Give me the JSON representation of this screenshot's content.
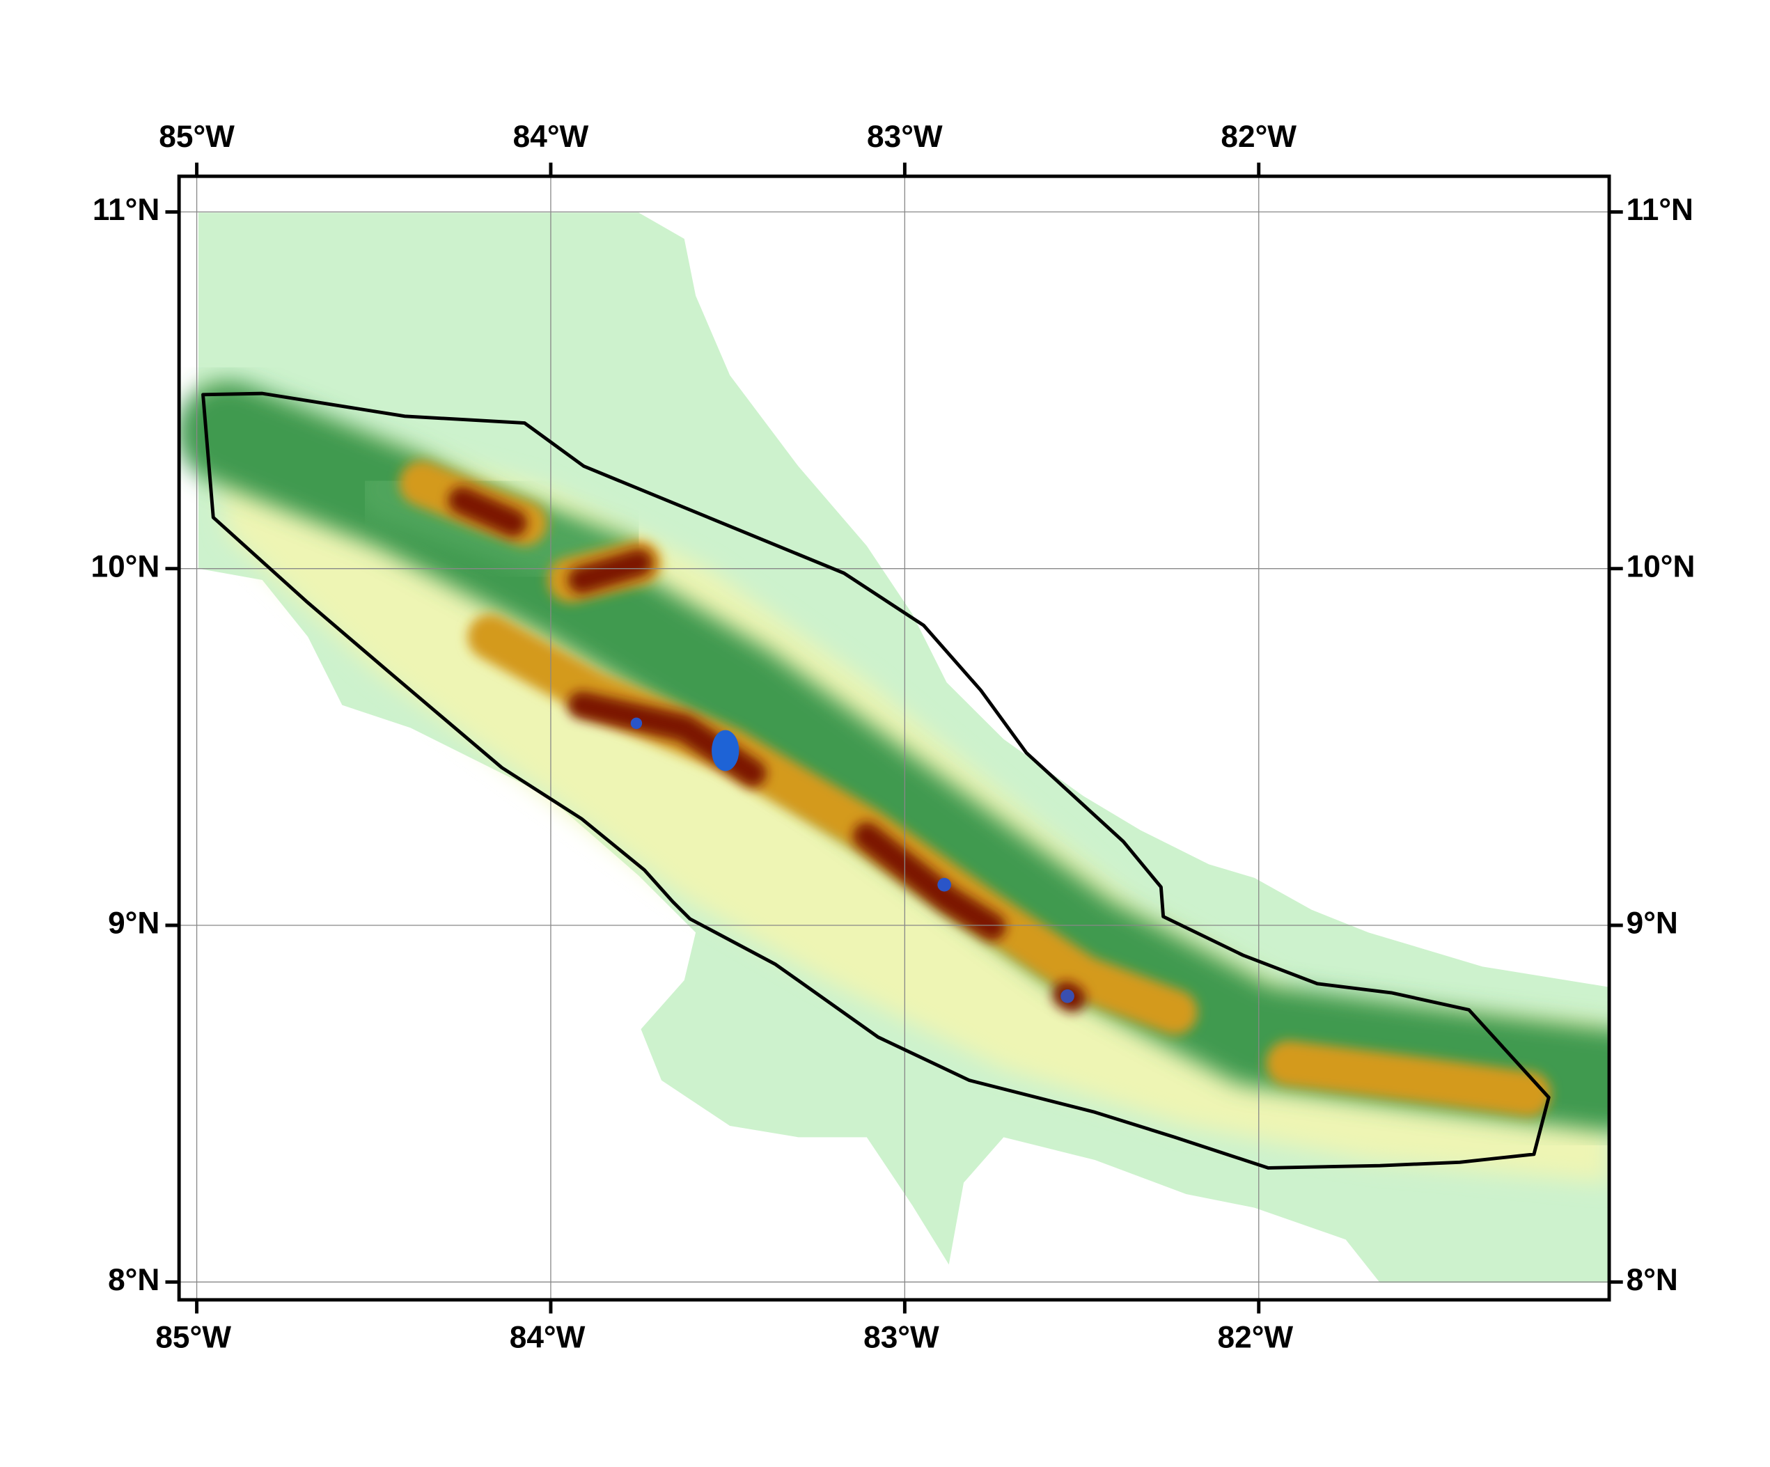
{
  "map": {
    "type": "map",
    "xlim": [
      -85.05,
      -81.01
    ],
    "ylim": [
      7.95,
      11.1
    ],
    "xticks": [
      {
        "value": -85,
        "label": "85°W"
      },
      {
        "value": -84,
        "label": "84°W"
      },
      {
        "value": -83,
        "label": "83°W"
      },
      {
        "value": -82,
        "label": "82°W"
      }
    ],
    "yticks": [
      {
        "value": 8,
        "label": "8°N"
      },
      {
        "value": 9,
        "label": "9°N"
      },
      {
        "value": 10,
        "label": "10°N"
      },
      {
        "value": 11,
        "label": "11°N"
      }
    ],
    "grid": true
  }
}
